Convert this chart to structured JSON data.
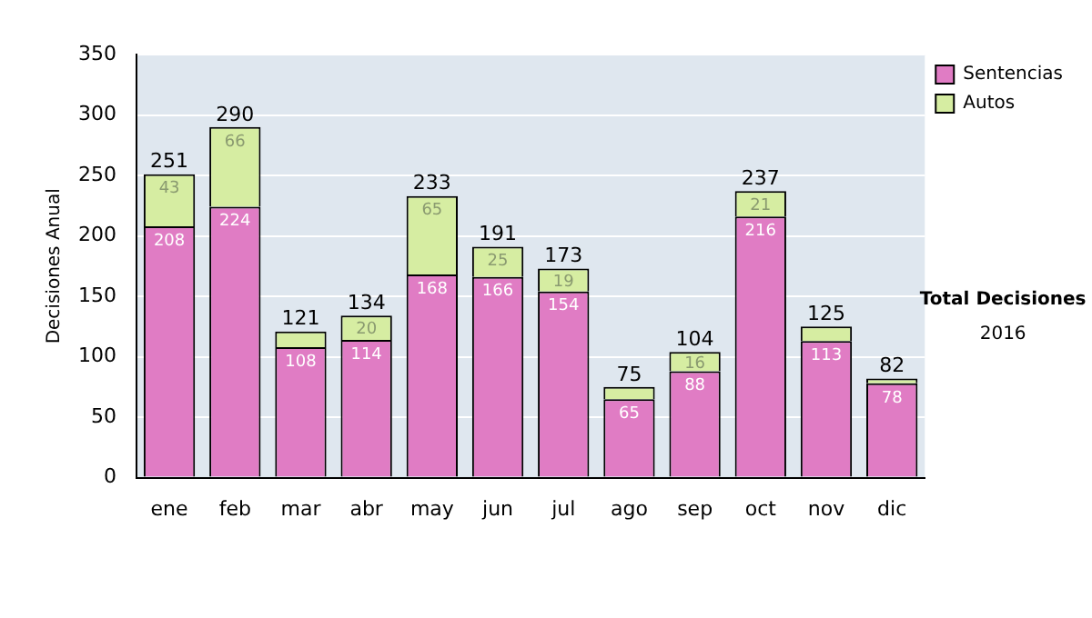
{
  "chart_data": {
    "type": "bar",
    "stacked": true,
    "ylabel": "Decisiones Anual",
    "categories": [
      "ene",
      "feb",
      "mar",
      "abr",
      "may",
      "jun",
      "jul",
      "ago",
      "sep",
      "oct",
      "nov",
      "dic"
    ],
    "series": [
      {
        "name": "Sentencias",
        "color": "#e07cc4",
        "values": [
          208,
          224,
          108,
          114,
          168,
          166,
          154,
          65,
          88,
          216,
          113,
          78
        ],
        "value_labels": [
          "208",
          "224",
          "108",
          "114",
          "168",
          "166",
          "154",
          "65",
          "88",
          "216",
          "113",
          "78"
        ]
      },
      {
        "name": "Autos",
        "color": "#d6eda2",
        "values": [
          43,
          66,
          13,
          20,
          65,
          25,
          19,
          10,
          16,
          21,
          12,
          4
        ],
        "value_labels": [
          "43",
          "66",
          null,
          "20",
          "65",
          "25",
          "19",
          null,
          "16",
          "21",
          null,
          null
        ]
      }
    ],
    "totals": [
      "251",
      "290",
      "121",
      "134",
      "233",
      "191",
      "173",
      "75",
      "104",
      "237",
      "125",
      "82"
    ],
    "ylim": [
      0,
      350
    ],
    "yticks": [
      0,
      50,
      100,
      150,
      200,
      250,
      300,
      350
    ],
    "grid": "y",
    "legend": "right",
    "annotations": [
      "Total Decisiones",
      "2016"
    ]
  }
}
